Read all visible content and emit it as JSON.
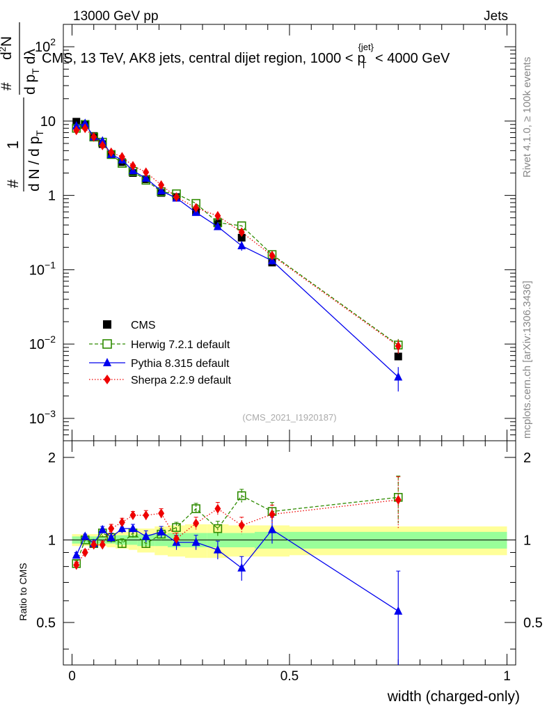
{
  "header": {
    "left": "13000 GeV pp",
    "right": "Jets"
  },
  "main_title": "CMS, 13 TeV, AK8 jets, central dijet region, 1000 < p_T^{jet} < 4000 GeV",
  "title_parts": {
    "prefix": "CMS, 13 TeV, AK8 jets, central dijet region, 1000 <",
    "p": "p",
    "sub": "T",
    "sup": "{jet}",
    "suffix": "< 4000 GeV"
  },
  "y_axis_label": {
    "hash1": "#",
    "one": "1",
    "dN": "d N / d p",
    "dN_sub": "T",
    "hash2": "#",
    "d2N": "d",
    "d2N_sup": "2",
    "d2N_rest": "N",
    "dpt": "d p",
    "dpt_sub": "T",
    "dlambda": "dλ",
    "hash3": "#"
  },
  "side_labels": {
    "rivet": "Rivet 4.1.0, ≥ 100k events",
    "mcplots": "mcplots.cern.ch [arXiv:1306.3436]"
  },
  "watermark": "(CMS_2021_I1920187)",
  "ratio_ylabel": "Ratio to CMS",
  "xlabel": "width (charged-only)",
  "main_ticks": {
    "y": [
      {
        "value": 0.001,
        "base": "10",
        "exp": "−3"
      },
      {
        "value": 0.01,
        "base": "10",
        "exp": "−2"
      },
      {
        "value": 0.1,
        "base": "10",
        "exp": "−1"
      },
      {
        "value": 1,
        "base": "1",
        "exp": ""
      },
      {
        "value": 10,
        "base": "10",
        "exp": ""
      },
      {
        "value": 100,
        "base": "10",
        "exp": "2"
      }
    ]
  },
  "ratio_ticks": {
    "y": [
      {
        "value": 0.5,
        "label": "0.5"
      },
      {
        "value": 1,
        "label": "1"
      },
      {
        "value": 2,
        "label": "2"
      }
    ]
  },
  "x_ticks": [
    {
      "value": 0,
      "label": "0"
    },
    {
      "value": 0.5,
      "label": "0.5"
    },
    {
      "value": 1,
      "label": "1"
    }
  ],
  "colors": {
    "cms": "#000000",
    "herwig": "#2e8b00",
    "pythia": "#0000ee",
    "sherpa": "#ee0000",
    "band_inner": "#99ff99",
    "band_outer": "#ffff99"
  },
  "chart_data": {
    "type": "scatter",
    "xlim": [
      -0.02,
      1.02
    ],
    "ylim": [
      0.0005,
      200
    ],
    "yscale": "log",
    "ratio_ylim": [
      0.35,
      2.3
    ],
    "ratio_yscale": "log",
    "x": [
      0.01,
      0.03,
      0.05,
      0.07,
      0.09,
      0.115,
      0.14,
      0.17,
      0.205,
      0.24,
      0.285,
      0.335,
      0.39,
      0.46,
      0.75
    ],
    "bin_edges": [
      0.0,
      0.02,
      0.04,
      0.06,
      0.08,
      0.1,
      0.13,
      0.15,
      0.19,
      0.22,
      0.26,
      0.31,
      0.36,
      0.42,
      0.5,
      1.0
    ],
    "legend": [
      "CMS",
      "Herwig 7.2.1 default",
      "Pythia 8.315 default",
      "Sherpa 2.2.9 default"
    ],
    "series": [
      {
        "name": "CMS",
        "key": "cms",
        "marker": "square-filled",
        "values": [
          9.8,
          9.0,
          6.3,
          4.9,
          3.5,
          2.8,
          2.0,
          1.65,
          1.08,
          0.95,
          0.6,
          0.42,
          0.27,
          0.125,
          0.0068
        ]
      },
      {
        "name": "Herwig 7.2.1 default",
        "key": "herwig",
        "marker": "square-open",
        "line": "dashed",
        "values": [
          8.0,
          9.0,
          6.1,
          5.2,
          3.55,
          2.7,
          2.1,
          1.6,
          1.12,
          1.05,
          0.78,
          0.43,
          0.39,
          0.16,
          0.0097
        ],
        "errors": [
          0,
          0,
          0,
          0,
          0,
          0,
          0,
          0,
          0,
          0,
          0,
          0,
          0,
          0,
          0.002
        ]
      },
      {
        "name": "Pythia 8.315 default",
        "key": "pythia",
        "marker": "triangle-filled",
        "line": "solid",
        "values": [
          8.6,
          9.3,
          6.1,
          5.4,
          3.55,
          3.0,
          2.15,
          1.7,
          1.15,
          0.92,
          0.59,
          0.38,
          0.21,
          0.132,
          0.0036
        ],
        "errors": [
          0,
          0,
          0,
          0,
          0,
          0,
          0,
          0,
          0,
          0,
          0,
          0,
          0.03,
          0.015,
          0.0013
        ]
      },
      {
        "name": "Sherpa 2.2.9 default",
        "key": "sherpa",
        "marker": "diamond-filled",
        "line": "dotted",
        "values": [
          7.5,
          8.0,
          6.1,
          4.7,
          3.8,
          3.3,
          2.5,
          2.05,
          1.38,
          0.95,
          0.68,
          0.53,
          0.32,
          0.155,
          0.0094
        ],
        "errors": [
          0,
          0,
          0,
          0,
          0,
          0,
          0,
          0,
          0,
          0,
          0,
          0,
          0,
          0,
          0.002
        ]
      }
    ],
    "ratio_series": [
      {
        "key": "herwig",
        "values": [
          0.82,
          1.0,
          0.97,
          1.06,
          1.02,
          0.97,
          1.06,
          0.97,
          1.05,
          1.11,
          1.3,
          1.1,
          1.45,
          1.27,
          1.43
        ],
        "errors": [
          0.02,
          0.02,
          0.03,
          0.03,
          0.04,
          0.04,
          0.04,
          0.04,
          0.05,
          0.05,
          0.06,
          0.07,
          0.08,
          0.1,
          0.28
        ]
      },
      {
        "key": "pythia",
        "values": [
          0.88,
          1.03,
          0.97,
          1.09,
          1.02,
          1.1,
          1.1,
          1.03,
          1.07,
          0.98,
          0.98,
          0.92,
          0.79,
          1.09,
          0.55
        ],
        "errors": [
          0.02,
          0.02,
          0.03,
          0.03,
          0.04,
          0.04,
          0.04,
          0.05,
          0.05,
          0.06,
          0.06,
          0.07,
          0.08,
          0.12,
          0.22
        ]
      },
      {
        "key": "sherpa",
        "values": [
          0.81,
          0.9,
          0.96,
          0.96,
          1.1,
          1.16,
          1.23,
          1.23,
          1.25,
          1.01,
          1.15,
          1.3,
          1.13,
          1.24,
          1.4
        ],
        "errors": [
          0.02,
          0.02,
          0.03,
          0.03,
          0.04,
          0.04,
          0.04,
          0.05,
          0.05,
          0.05,
          0.06,
          0.07,
          0.08,
          0.1,
          0.3
        ]
      }
    ],
    "ratio_band_inner": [
      0.03,
      0.03,
      0.03,
      0.03,
      0.03,
      0.04,
      0.04,
      0.05,
      0.05,
      0.06,
      0.06,
      0.06,
      0.06,
      0.07,
      0.07
    ],
    "ratio_band_outer": [
      0.05,
      0.05,
      0.05,
      0.05,
      0.06,
      0.07,
      0.08,
      0.1,
      0.12,
      0.13,
      0.14,
      0.14,
      0.13,
      0.13,
      0.12
    ]
  }
}
